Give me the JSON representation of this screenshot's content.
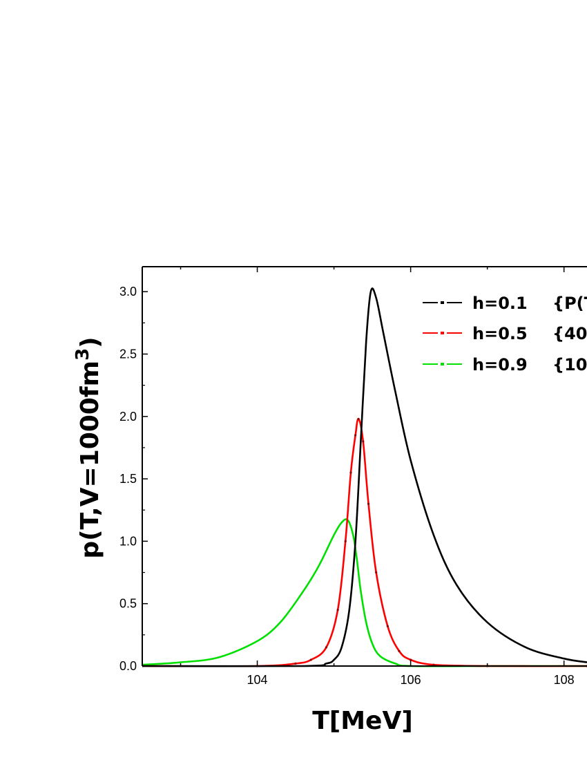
{
  "chart_data": {
    "type": "line",
    "xlabel": "T[MeV]",
    "ylabel": "p(T,V=1000fm",
    "ylabel_sup": "3",
    "ylabel_end": ")",
    "xlim": [
      102.5,
      108.3
    ],
    "ylim": [
      0.0,
      3.2
    ],
    "x_ticks": [
      104,
      106,
      108
    ],
    "x_tick_labels": [
      "104",
      "106",
      "108"
    ],
    "y_ticks": [
      0.0,
      0.5,
      1.0,
      1.5,
      2.0,
      2.5,
      3.0
    ],
    "y_tick_labels": [
      "0.0",
      "0.5",
      "1.0",
      "1.5",
      "2.0",
      "2.5",
      "3.0"
    ],
    "grid": false,
    "legend_position": "top-right",
    "series": [
      {
        "name": "h=0.1",
        "legend_extra": "{P(T",
        "color": "#000000",
        "x": [
          102.5,
          104.6,
          104.9,
          105.0,
          105.1,
          105.2,
          105.28,
          105.35,
          105.42,
          105.48,
          105.55,
          105.65,
          105.8,
          106.0,
          106.3,
          106.6,
          107.0,
          107.5,
          108.0,
          108.3
        ],
        "y": [
          0.0,
          0.0,
          0.02,
          0.05,
          0.15,
          0.45,
          1.0,
          1.8,
          2.6,
          3.0,
          2.95,
          2.65,
          2.2,
          1.65,
          1.05,
          0.65,
          0.35,
          0.15,
          0.06,
          0.03
        ]
      },
      {
        "name": "h=0.5",
        "legend_extra": "{40",
        "color": "#ff0000",
        "x": [
          102.5,
          104.0,
          104.5,
          104.7,
          104.9,
          105.05,
          105.15,
          105.22,
          105.28,
          105.32,
          105.38,
          105.45,
          105.55,
          105.7,
          105.85,
          106.0,
          106.3,
          107.0,
          108.3
        ],
        "y": [
          0.0,
          0.0,
          0.02,
          0.05,
          0.15,
          0.45,
          1.0,
          1.55,
          1.85,
          1.98,
          1.8,
          1.3,
          0.75,
          0.32,
          0.12,
          0.05,
          0.01,
          0.0,
          0.0
        ],
        "markers": true
      },
      {
        "name": "h=0.9",
        "legend_extra": "{10",
        "color": "#00e000",
        "x": [
          102.5,
          103.0,
          103.5,
          104.0,
          104.3,
          104.6,
          104.8,
          105.0,
          105.1,
          105.18,
          105.25,
          105.3,
          105.35,
          105.42,
          105.5,
          105.6,
          105.8,
          106.0,
          107.0,
          108.3
        ],
        "y": [
          0.01,
          0.03,
          0.07,
          0.2,
          0.35,
          0.6,
          0.8,
          1.05,
          1.15,
          1.17,
          1.05,
          0.85,
          0.6,
          0.35,
          0.18,
          0.08,
          0.02,
          0.0,
          0.0,
          0.0
        ]
      }
    ]
  }
}
